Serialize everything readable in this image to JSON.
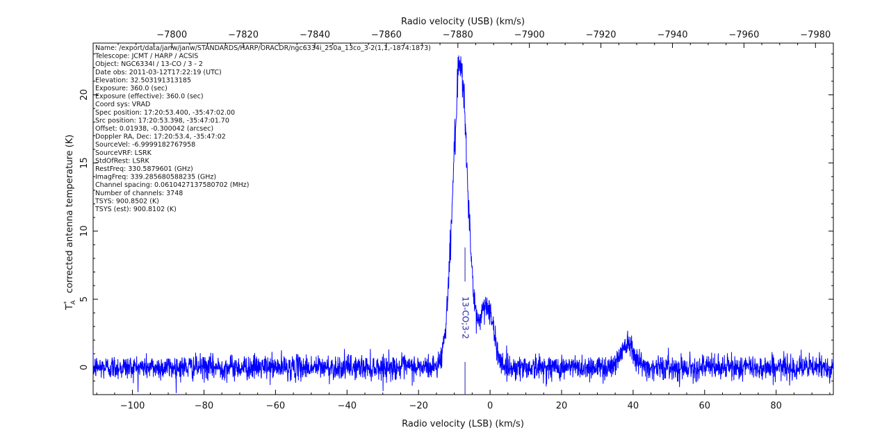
{
  "chart_data": {
    "type": "line",
    "xlabel": "Radio velocity (LSB) (km/s)",
    "x2label": "Radio velocity (USB) (km/s)",
    "ylabel": "corrected antenna temperature (K)",
    "ylabel_symbol": "T",
    "ylabel_sub": "A",
    "ylabel_sup": "*",
    "xlim": [
      -111,
      96
    ],
    "ylim": [
      -2,
      23.8
    ],
    "x2lim": [
      -7778,
      -7985
    ],
    "xticks": [
      -100,
      -80,
      -60,
      -40,
      -20,
      0,
      20,
      40,
      60,
      80
    ],
    "xtick_labels": [
      "−100",
      "−80",
      "−60",
      "−40",
      "−20",
      "0",
      "20",
      "40",
      "60",
      "80"
    ],
    "x2ticks": [
      -7800,
      -7820,
      -7840,
      -7860,
      -7880,
      -7900,
      -7920,
      -7940,
      -7960,
      -7980
    ],
    "x2tick_labels": [
      "−7800",
      "−7820",
      "−7840",
      "−7860",
      "−7880",
      "−7900",
      "−7920",
      "−7940",
      "−7960",
      "−7980"
    ],
    "yticks": [
      0,
      5,
      10,
      15,
      20
    ],
    "ytick_labels": [
      "0",
      "5",
      "10",
      "15",
      "20"
    ],
    "grid": false,
    "line_color": "#0000ff",
    "noise_rms": 0.45,
    "components": [
      {
        "name": "main",
        "center": -8.3,
        "amplitude": 21.8,
        "sigma": 2.1
      },
      {
        "name": "shoulder",
        "center": -1.0,
        "amplitude": 4.6,
        "sigma": 1.9
      },
      {
        "name": "secondary",
        "center": 38.5,
        "amplitude": 1.9,
        "sigma": 1.8
      }
    ],
    "samples": [
      {
        "x": -110,
        "y": 0.1
      },
      {
        "x": -100,
        "y": 0.0
      },
      {
        "x": -80,
        "y": 0.1
      },
      {
        "x": -60,
        "y": 0.2
      },
      {
        "x": -40,
        "y": 0.3
      },
      {
        "x": -20,
        "y": 0.4
      },
      {
        "x": -14,
        "y": 1.6
      },
      {
        "x": -12,
        "y": 4.5
      },
      {
        "x": -10,
        "y": 14.5
      },
      {
        "x": -8.5,
        "y": 22.3
      },
      {
        "x": -7,
        "y": 19.5
      },
      {
        "x": -5,
        "y": 12.0
      },
      {
        "x": -3,
        "y": 5.0
      },
      {
        "x": -1,
        "y": 5.8
      },
      {
        "x": 1,
        "y": 1.5
      },
      {
        "x": 3,
        "y": 0.3
      },
      {
        "x": 20,
        "y": 0.2
      },
      {
        "x": 36,
        "y": 1.0
      },
      {
        "x": 38.5,
        "y": 2.0
      },
      {
        "x": 42,
        "y": 0.8
      },
      {
        "x": 60,
        "y": 0.1
      },
      {
        "x": 80,
        "y": 0.1
      },
      {
        "x": 95,
        "y": 0.2
      }
    ],
    "line_marker": {
      "x": -7.0,
      "label": "13-CO;3-2",
      "color": "#2222aa"
    },
    "annotations": [
      "Name: /export/data/janw/janw/STANDARDS/HARP/ORACDR/ngc6334i_250a_13co_3-2(1,1,-1874:1873)",
      "Telescope: JCMT / HARP / ACSIS",
      "Object: NGC6334I / 13-CO / 3 - 2",
      "Date obs: 2011-03-12T17:22:19 (UTC)",
      "Elevation: 32.503191313185",
      "Exposure: 360.0 (sec)",
      "Exposure (effective): 360.0 (sec)",
      "Coord sys: VRAD",
      "Spec position: 17:20:53.400, -35:47:02.00",
      "Src position: 17:20:53.398, -35:47:01.70",
      "Offset: 0.01938, -0.300042 (arcsec)",
      "Doppler RA, Dec: 17:20:53.4, -35:47:02",
      "SourceVel: -6.9999182767958",
      "SourceVRF: LSRK",
      "StdOfRest: LSRK",
      "RestFreq: 330.5879601 (GHz)",
      "ImagFreq: 339.285680588235 (GHz)",
      "Channel spacing: 0.0610427137580702 (MHz)",
      "Number of channels: 3748",
      "TSYS: 900.8502 (K)",
      "TSYS (est): 900.8102 (K)"
    ]
  }
}
